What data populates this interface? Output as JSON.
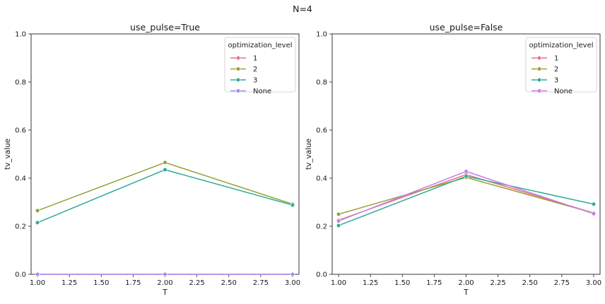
{
  "suptitle": "N=4",
  "chart_data": [
    {
      "type": "line",
      "title": "use_pulse=True",
      "xlabel": "T",
      "ylabel": "tv_value",
      "xlim": [
        0.95,
        3.05
      ],
      "ylim": [
        0,
        1.0
      ],
      "xticks": [
        "1.00",
        "1.25",
        "1.50",
        "1.75",
        "2.00",
        "2.25",
        "2.50",
        "2.75",
        "3.00"
      ],
      "yticks": [
        "0.0",
        "0.2",
        "0.4",
        "0.6",
        "0.8",
        "1.0"
      ],
      "grid": false,
      "legend": {
        "title": "optimization_level",
        "placement": "top-right"
      },
      "x": [
        1.0,
        2.0,
        3.0
      ],
      "series": [
        {
          "name": "1",
          "color": "#e8707e",
          "values": [
            0.0,
            0.0,
            0.0
          ]
        },
        {
          "name": "2",
          "color": "#96a233",
          "values": [
            0.265,
            0.465,
            0.292
          ]
        },
        {
          "name": "3",
          "color": "#2eac97",
          "values": [
            0.215,
            0.435,
            0.288
          ]
        },
        {
          "name": "None",
          "color": "#a18bf5",
          "values": [
            0.0,
            0.0,
            0.0
          ]
        }
      ]
    },
    {
      "type": "line",
      "title": "use_pulse=False",
      "xlabel": "T",
      "ylabel": "tv_value",
      "xlim": [
        0.95,
        3.05
      ],
      "ylim": [
        0,
        1.0
      ],
      "xticks": [
        "1.00",
        "1.25",
        "1.50",
        "1.75",
        "2.00",
        "2.25",
        "2.50",
        "2.75",
        "3.00"
      ],
      "yticks": [
        "0.0",
        "0.2",
        "0.4",
        "0.6",
        "0.8",
        "1.0"
      ],
      "grid": false,
      "legend": {
        "title": "optimization_level",
        "placement": "top-right"
      },
      "x": [
        1.0,
        2.0,
        3.0
      ],
      "series": [
        {
          "name": "1",
          "color": "#e8707e",
          "values": [
            0.225,
            0.415,
            0.255
          ]
        },
        {
          "name": "2",
          "color": "#96a233",
          "values": [
            0.25,
            0.403,
            0.255
          ]
        },
        {
          "name": "3",
          "color": "#2eac97",
          "values": [
            0.203,
            0.408,
            0.292
          ]
        },
        {
          "name": "None",
          "color": "#c97be8",
          "values": [
            0.222,
            0.428,
            0.252
          ]
        }
      ]
    }
  ]
}
